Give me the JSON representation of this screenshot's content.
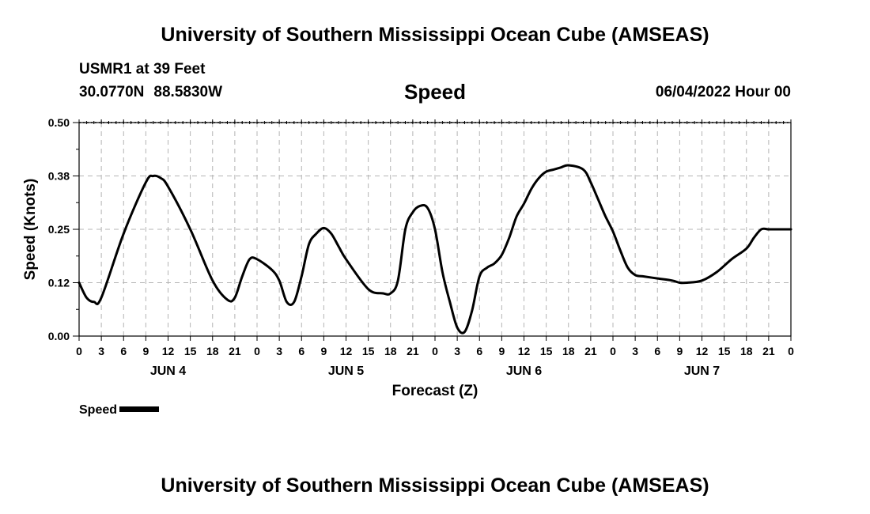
{
  "header": {
    "title": "University of Southern Mississippi Ocean Cube (AMSEAS)",
    "station": "USMR1 at 39 Feet",
    "lat": "30.0770N",
    "lon": "88.5830W",
    "variable": "Speed",
    "datetime": "06/04/2022 Hour 00"
  },
  "footer": {
    "title": "University of Southern Mississippi Ocean Cube (AMSEAS)"
  },
  "legend": {
    "label": "Speed"
  },
  "chart_data": {
    "type": "line",
    "title": "Speed",
    "xlabel": "Forecast (Z)",
    "ylabel": "Speed (Knots)",
    "xlim": [
      0,
      96
    ],
    "ylim": [
      0,
      0.5
    ],
    "yticks": [
      {
        "value": 0.0,
        "label": "0.00"
      },
      {
        "value": 0.125,
        "label": "0.12"
      },
      {
        "value": 0.25,
        "label": "0.25"
      },
      {
        "value": 0.375,
        "label": "0.38"
      },
      {
        "value": 0.5,
        "label": "0.50"
      }
    ],
    "xtick_labels": [
      "0",
      "3",
      "6",
      "9",
      "12",
      "15",
      "18",
      "21",
      "0",
      "3",
      "6",
      "9",
      "12",
      "15",
      "18",
      "21",
      "0",
      "3",
      "6",
      "9",
      "12",
      "15",
      "18",
      "21",
      "0",
      "3",
      "6",
      "9",
      "12",
      "15",
      "18",
      "21",
      "0"
    ],
    "day_labels": [
      {
        "hour": 12,
        "label": "JUN 4"
      },
      {
        "hour": 36,
        "label": "JUN 5"
      },
      {
        "hour": 60,
        "label": "JUN 6"
      },
      {
        "hour": 84,
        "label": "JUN 7"
      }
    ],
    "grid": true,
    "series": [
      {
        "name": "Speed",
        "x": [
          0,
          1,
          2,
          3,
          6,
          9,
          10,
          11,
          12,
          15,
          18,
          20,
          21,
          22,
          23,
          24,
          26,
          27,
          28,
          29,
          30,
          31,
          32,
          33,
          34,
          35,
          36,
          39,
          41,
          42,
          43,
          44,
          45,
          46,
          47,
          48,
          49,
          50,
          51,
          52,
          53,
          54,
          55,
          56,
          57,
          58,
          59,
          60,
          61,
          62,
          63,
          64,
          65,
          66,
          68,
          69,
          70,
          71,
          72,
          73,
          74,
          75,
          76,
          78,
          80,
          81,
          82,
          84,
          86,
          88,
          90,
          91,
          92,
          93,
          94,
          95,
          96
        ],
        "y": [
          0.125,
          0.09,
          0.08,
          0.09,
          0.24,
          0.36,
          0.375,
          0.37,
          0.35,
          0.25,
          0.13,
          0.085,
          0.09,
          0.14,
          0.18,
          0.18,
          0.155,
          0.13,
          0.08,
          0.08,
          0.14,
          0.215,
          0.24,
          0.253,
          0.24,
          0.21,
          0.18,
          0.11,
          0.1,
          0.1,
          0.13,
          0.25,
          0.29,
          0.305,
          0.3,
          0.25,
          0.15,
          0.08,
          0.02,
          0.01,
          0.06,
          0.14,
          0.16,
          0.17,
          0.19,
          0.23,
          0.28,
          0.31,
          0.345,
          0.37,
          0.385,
          0.39,
          0.395,
          0.4,
          0.39,
          0.36,
          0.32,
          0.28,
          0.245,
          0.2,
          0.16,
          0.143,
          0.14,
          0.135,
          0.13,
          0.125,
          0.125,
          0.13,
          0.15,
          0.18,
          0.205,
          0.23,
          0.25,
          0.25,
          0.25,
          0.25,
          0.25
        ]
      }
    ]
  }
}
